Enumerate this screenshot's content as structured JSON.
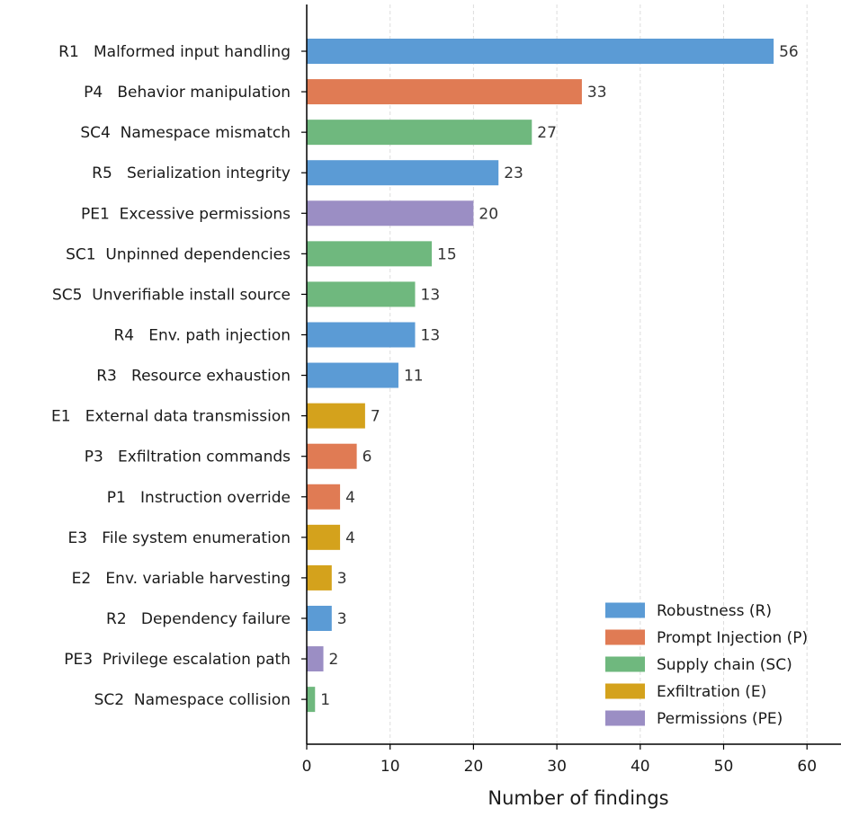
{
  "chart_data": {
    "type": "bar",
    "orientation": "horizontal",
    "title": "",
    "xlabel": "Number of findings",
    "ylabel": "",
    "xlim": [
      0,
      64
    ],
    "xticks": [
      0,
      10,
      20,
      30,
      40,
      50,
      60
    ],
    "grid": "vertical dashed",
    "legend_position": "bottom-right",
    "categories": [
      {
        "label": "R1   Malformed input handling",
        "value": 56,
        "group": "R"
      },
      {
        "label": "P4   Behavior manipulation",
        "value": 33,
        "group": "P"
      },
      {
        "label": "SC4  Namespace mismatch",
        "value": 27,
        "group": "SC"
      },
      {
        "label": "R5   Serialization integrity",
        "value": 23,
        "group": "R"
      },
      {
        "label": "PE1  Excessive permissions",
        "value": 20,
        "group": "PE"
      },
      {
        "label": "SC1  Unpinned dependencies",
        "value": 15,
        "group": "SC"
      },
      {
        "label": "SC5  Unverifiable install source",
        "value": 13,
        "group": "SC"
      },
      {
        "label": "R4   Env. path injection",
        "value": 13,
        "group": "R"
      },
      {
        "label": "R3   Resource exhaustion",
        "value": 11,
        "group": "R"
      },
      {
        "label": "E1   External data transmission",
        "value": 7,
        "group": "E"
      },
      {
        "label": "P3   Exfiltration commands",
        "value": 6,
        "group": "P"
      },
      {
        "label": "P1   Instruction override",
        "value": 4,
        "group": "P"
      },
      {
        "label": "E3   File system enumeration",
        "value": 4,
        "group": "E"
      },
      {
        "label": "E2   Env. variable harvesting",
        "value": 3,
        "group": "E"
      },
      {
        "label": "R2   Dependency failure",
        "value": 3,
        "group": "R"
      },
      {
        "label": "PE3  Privilege escalation path",
        "value": 2,
        "group": "PE"
      },
      {
        "label": "SC2  Namespace collision",
        "value": 1,
        "group": "SC"
      }
    ],
    "series": [
      {
        "key": "R",
        "name": "Robustness (R)",
        "color": "#5b9bd5"
      },
      {
        "key": "P",
        "name": "Prompt Injection (P)",
        "color": "#e07b54"
      },
      {
        "key": "SC",
        "name": "Supply chain (SC)",
        "color": "#6fb87e"
      },
      {
        "key": "E",
        "name": "Exfiltration (E)",
        "color": "#d4a21c"
      },
      {
        "key": "PE",
        "name": "Permissions (PE)",
        "color": "#9b8ec4"
      }
    ]
  }
}
